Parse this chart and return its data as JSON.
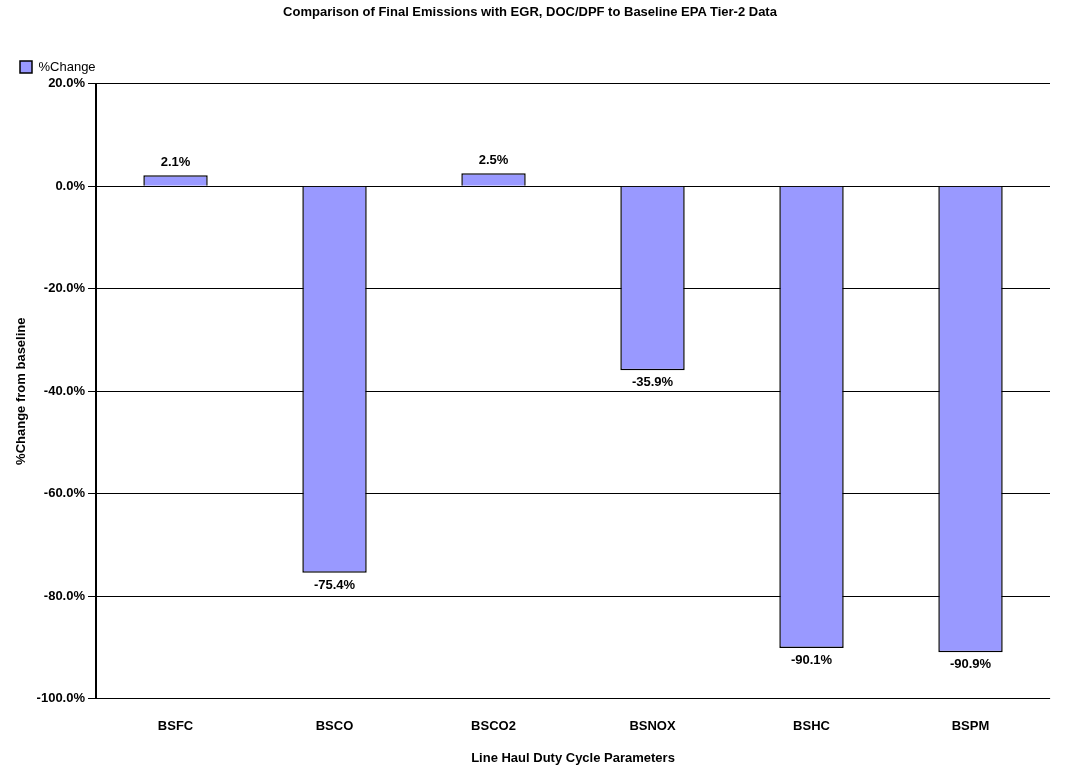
{
  "chart_data": {
    "type": "bar",
    "title": "Comparison of Final Emissions with EGR, DOC/DPF to Baseline EPA Tier-2 Data",
    "xlabel": "Line Haul Duty Cycle Parameters",
    "ylabel": "%Change from baseline",
    "categories": [
      "BSFC",
      "BSCO",
      "BSCO2",
      "BSNOX",
      "BSHC",
      "BSPM"
    ],
    "series": [
      {
        "name": "%Change",
        "color": "#9999ff",
        "values": [
          2.1,
          -75.4,
          2.5,
          -35.9,
          -90.1,
          -90.9
        ],
        "value_labels": [
          "2.1%",
          "-75.4%",
          "2.5%",
          "-35.9%",
          "-90.1%",
          "-90.9%"
        ]
      }
    ],
    "ylim": [
      -100,
      20
    ],
    "yticks": [
      {
        "value": -100,
        "label": "-100.0%"
      },
      {
        "value": -80,
        "label": "-80.0%"
      },
      {
        "value": -60,
        "label": "-60.0%"
      },
      {
        "value": -40,
        "label": "-40.0%"
      },
      {
        "value": -20,
        "label": "-20.0%"
      },
      {
        "value": 0,
        "label": "0.0%"
      },
      {
        "value": 20,
        "label": "20.0%"
      }
    ],
    "grid": "y",
    "legend": "top left"
  }
}
